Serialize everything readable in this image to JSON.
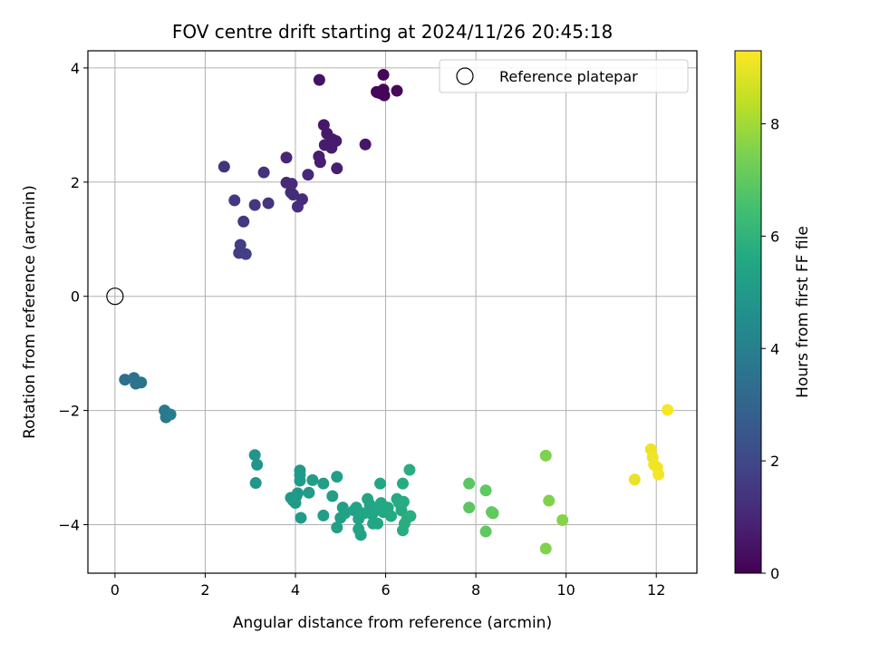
{
  "chart_data": {
    "type": "scatter",
    "title": "FOV centre drift starting at 2024/11/26 20:45:18",
    "xlabel": "Angular distance from reference (arcmin)",
    "ylabel": "Rotation from reference (arcmin)",
    "colorbar_label": "Hours from first FF file",
    "xlim": [
      -0.6,
      12.9
    ],
    "ylim": [
      -4.85,
      4.3
    ],
    "x_ticks": [
      0,
      2,
      4,
      6,
      8,
      10,
      12
    ],
    "y_ticks": [
      -4,
      -2,
      0,
      2,
      4
    ],
    "x_tick_labels": [
      "0",
      "2",
      "4",
      "6",
      "8",
      "10",
      "12"
    ],
    "y_tick_labels": [
      "−4",
      "−2",
      "0",
      "2",
      "4"
    ],
    "colorbar_range": [
      0,
      9.3
    ],
    "colorbar_ticks": [
      0,
      2,
      4,
      6,
      8
    ],
    "colorbar_tick_labels": [
      "0",
      "2",
      "4",
      "6",
      "8"
    ],
    "colormap": "viridis",
    "grid": true,
    "legend": {
      "placement": "top-right",
      "entries": [
        "Reference platepar"
      ]
    },
    "reference_point": {
      "x": 0,
      "y": 0,
      "label": "Reference platepar"
    },
    "points": [
      {
        "x": 5.82,
        "y": 3.57,
        "h": 0.05
      },
      {
        "x": 5.9,
        "y": 3.55,
        "h": 0.08
      },
      {
        "x": 5.97,
        "y": 3.52,
        "h": 0.1
      },
      {
        "x": 5.95,
        "y": 3.62,
        "h": 0.12
      },
      {
        "x": 5.8,
        "y": 3.58,
        "h": 0.15
      },
      {
        "x": 6.25,
        "y": 3.6,
        "h": 0.18
      },
      {
        "x": 5.95,
        "y": 3.88,
        "h": 0.2
      },
      {
        "x": 4.53,
        "y": 3.79,
        "h": 0.45
      },
      {
        "x": 4.63,
        "y": 3.0,
        "h": 0.6
      },
      {
        "x": 4.7,
        "y": 2.85,
        "h": 0.62
      },
      {
        "x": 4.82,
        "y": 2.75,
        "h": 0.65
      },
      {
        "x": 4.9,
        "y": 2.72,
        "h": 0.67
      },
      {
        "x": 4.65,
        "y": 2.65,
        "h": 0.7
      },
      {
        "x": 4.8,
        "y": 2.6,
        "h": 0.72
      },
      {
        "x": 4.52,
        "y": 2.45,
        "h": 0.75
      },
      {
        "x": 4.55,
        "y": 2.35,
        "h": 0.78
      },
      {
        "x": 4.92,
        "y": 2.24,
        "h": 0.8
      },
      {
        "x": 5.55,
        "y": 2.66,
        "h": 0.55
      },
      {
        "x": 3.8,
        "y": 2.43,
        "h": 1.0
      },
      {
        "x": 4.28,
        "y": 2.13,
        "h": 1.05
      },
      {
        "x": 3.8,
        "y": 1.99,
        "h": 1.1
      },
      {
        "x": 3.92,
        "y": 1.97,
        "h": 1.12
      },
      {
        "x": 3.9,
        "y": 1.82,
        "h": 1.15
      },
      {
        "x": 3.95,
        "y": 1.78,
        "h": 1.18
      },
      {
        "x": 4.15,
        "y": 1.7,
        "h": 1.2
      },
      {
        "x": 4.05,
        "y": 1.57,
        "h": 1.22
      },
      {
        "x": 2.42,
        "y": 2.27,
        "h": 1.4
      },
      {
        "x": 3.3,
        "y": 2.17,
        "h": 1.35
      },
      {
        "x": 2.65,
        "y": 1.68,
        "h": 1.5
      },
      {
        "x": 3.1,
        "y": 1.6,
        "h": 1.45
      },
      {
        "x": 3.4,
        "y": 1.63,
        "h": 1.42
      },
      {
        "x": 2.85,
        "y": 1.31,
        "h": 1.55
      },
      {
        "x": 2.78,
        "y": 0.9,
        "h": 1.65
      },
      {
        "x": 2.75,
        "y": 0.76,
        "h": 1.7
      },
      {
        "x": 2.9,
        "y": 0.74,
        "h": 1.72
      },
      {
        "x": 0.22,
        "y": -1.46,
        "h": 3.4
      },
      {
        "x": 0.42,
        "y": -1.43,
        "h": 3.45
      },
      {
        "x": 0.46,
        "y": -1.53,
        "h": 3.5
      },
      {
        "x": 0.58,
        "y": -1.51,
        "h": 3.52
      },
      {
        "x": 1.1,
        "y": -2.0,
        "h": 3.75
      },
      {
        "x": 1.13,
        "y": -2.12,
        "h": 3.8
      },
      {
        "x": 1.23,
        "y": -2.07,
        "h": 3.85
      },
      {
        "x": 3.1,
        "y": -2.78,
        "h": 4.8
      },
      {
        "x": 3.15,
        "y": -2.95,
        "h": 4.82
      },
      {
        "x": 3.12,
        "y": -3.27,
        "h": 4.85
      },
      {
        "x": 3.9,
        "y": -3.53,
        "h": 4.9
      },
      {
        "x": 3.95,
        "y": -3.58,
        "h": 4.92
      },
      {
        "x": 4.02,
        "y": -3.5,
        "h": 4.95
      },
      {
        "x": 4.05,
        "y": -3.45,
        "h": 4.98
      },
      {
        "x": 4.1,
        "y": -3.05,
        "h": 5.0
      },
      {
        "x": 4.1,
        "y": -3.13,
        "h": 5.02
      },
      {
        "x": 4.1,
        "y": -3.23,
        "h": 5.04
      },
      {
        "x": 4.0,
        "y": -3.62,
        "h": 5.06
      },
      {
        "x": 4.12,
        "y": -3.88,
        "h": 5.08
      },
      {
        "x": 4.3,
        "y": -3.44,
        "h": 5.1
      },
      {
        "x": 4.38,
        "y": -3.22,
        "h": 5.12
      },
      {
        "x": 4.62,
        "y": -3.28,
        "h": 5.14
      },
      {
        "x": 4.62,
        "y": -3.84,
        "h": 5.16
      },
      {
        "x": 4.82,
        "y": -3.5,
        "h": 5.18
      },
      {
        "x": 4.92,
        "y": -3.16,
        "h": 5.2
      },
      {
        "x": 4.92,
        "y": -4.05,
        "h": 5.22
      },
      {
        "x": 5.0,
        "y": -3.88,
        "h": 5.24
      },
      {
        "x": 5.05,
        "y": -3.7,
        "h": 5.26
      },
      {
        "x": 5.1,
        "y": -3.8,
        "h": 5.28
      },
      {
        "x": 5.3,
        "y": -3.75,
        "h": 5.3
      },
      {
        "x": 5.35,
        "y": -3.7,
        "h": 5.32
      },
      {
        "x": 5.4,
        "y": -3.9,
        "h": 5.34
      },
      {
        "x": 5.4,
        "y": -4.08,
        "h": 5.36
      },
      {
        "x": 5.45,
        "y": -4.18,
        "h": 5.38
      },
      {
        "x": 5.52,
        "y": -3.8,
        "h": 5.4
      },
      {
        "x": 5.6,
        "y": -3.55,
        "h": 5.42
      },
      {
        "x": 5.65,
        "y": -3.65,
        "h": 5.44
      },
      {
        "x": 5.7,
        "y": -3.82,
        "h": 5.46
      },
      {
        "x": 5.72,
        "y": -3.98,
        "h": 5.48
      },
      {
        "x": 5.78,
        "y": -3.75,
        "h": 5.5
      },
      {
        "x": 5.82,
        "y": -3.98,
        "h": 5.52
      },
      {
        "x": 5.88,
        "y": -3.28,
        "h": 5.54
      },
      {
        "x": 5.9,
        "y": -3.62,
        "h": 5.56
      },
      {
        "x": 5.95,
        "y": -3.78,
        "h": 5.58
      },
      {
        "x": 6.05,
        "y": -3.7,
        "h": 5.6
      },
      {
        "x": 6.12,
        "y": -3.85,
        "h": 5.62
      },
      {
        "x": 6.25,
        "y": -3.55,
        "h": 5.64
      },
      {
        "x": 6.3,
        "y": -3.62,
        "h": 5.66
      },
      {
        "x": 6.35,
        "y": -3.75,
        "h": 5.68
      },
      {
        "x": 6.38,
        "y": -3.28,
        "h": 5.7
      },
      {
        "x": 6.4,
        "y": -3.6,
        "h": 5.72
      },
      {
        "x": 6.38,
        "y": -4.1,
        "h": 5.74
      },
      {
        "x": 6.42,
        "y": -3.98,
        "h": 5.76
      },
      {
        "x": 6.48,
        "y": -3.88,
        "h": 5.78
      },
      {
        "x": 6.53,
        "y": -3.04,
        "h": 5.8
      },
      {
        "x": 6.55,
        "y": -3.85,
        "h": 5.82
      },
      {
        "x": 7.85,
        "y": -3.28,
        "h": 6.9
      },
      {
        "x": 7.85,
        "y": -3.7,
        "h": 6.92
      },
      {
        "x": 8.22,
        "y": -3.4,
        "h": 6.95
      },
      {
        "x": 8.22,
        "y": -4.12,
        "h": 6.98
      },
      {
        "x": 8.35,
        "y": -3.78,
        "h": 7.0
      },
      {
        "x": 8.38,
        "y": -3.8,
        "h": 7.02
      },
      {
        "x": 9.55,
        "y": -2.79,
        "h": 7.5
      },
      {
        "x": 9.62,
        "y": -3.58,
        "h": 7.52
      },
      {
        "x": 9.55,
        "y": -4.42,
        "h": 7.55
      },
      {
        "x": 9.92,
        "y": -3.92,
        "h": 7.6
      },
      {
        "x": 11.52,
        "y": -3.21,
        "h": 9.0
      },
      {
        "x": 11.88,
        "y": -2.68,
        "h": 9.05
      },
      {
        "x": 11.92,
        "y": -2.82,
        "h": 9.08
      },
      {
        "x": 11.95,
        "y": -2.95,
        "h": 9.1
      },
      {
        "x": 12.02,
        "y": -3.0,
        "h": 9.12
      },
      {
        "x": 12.05,
        "y": -3.12,
        "h": 9.15
      },
      {
        "x": 12.25,
        "y": -1.99,
        "h": 9.2
      }
    ]
  }
}
